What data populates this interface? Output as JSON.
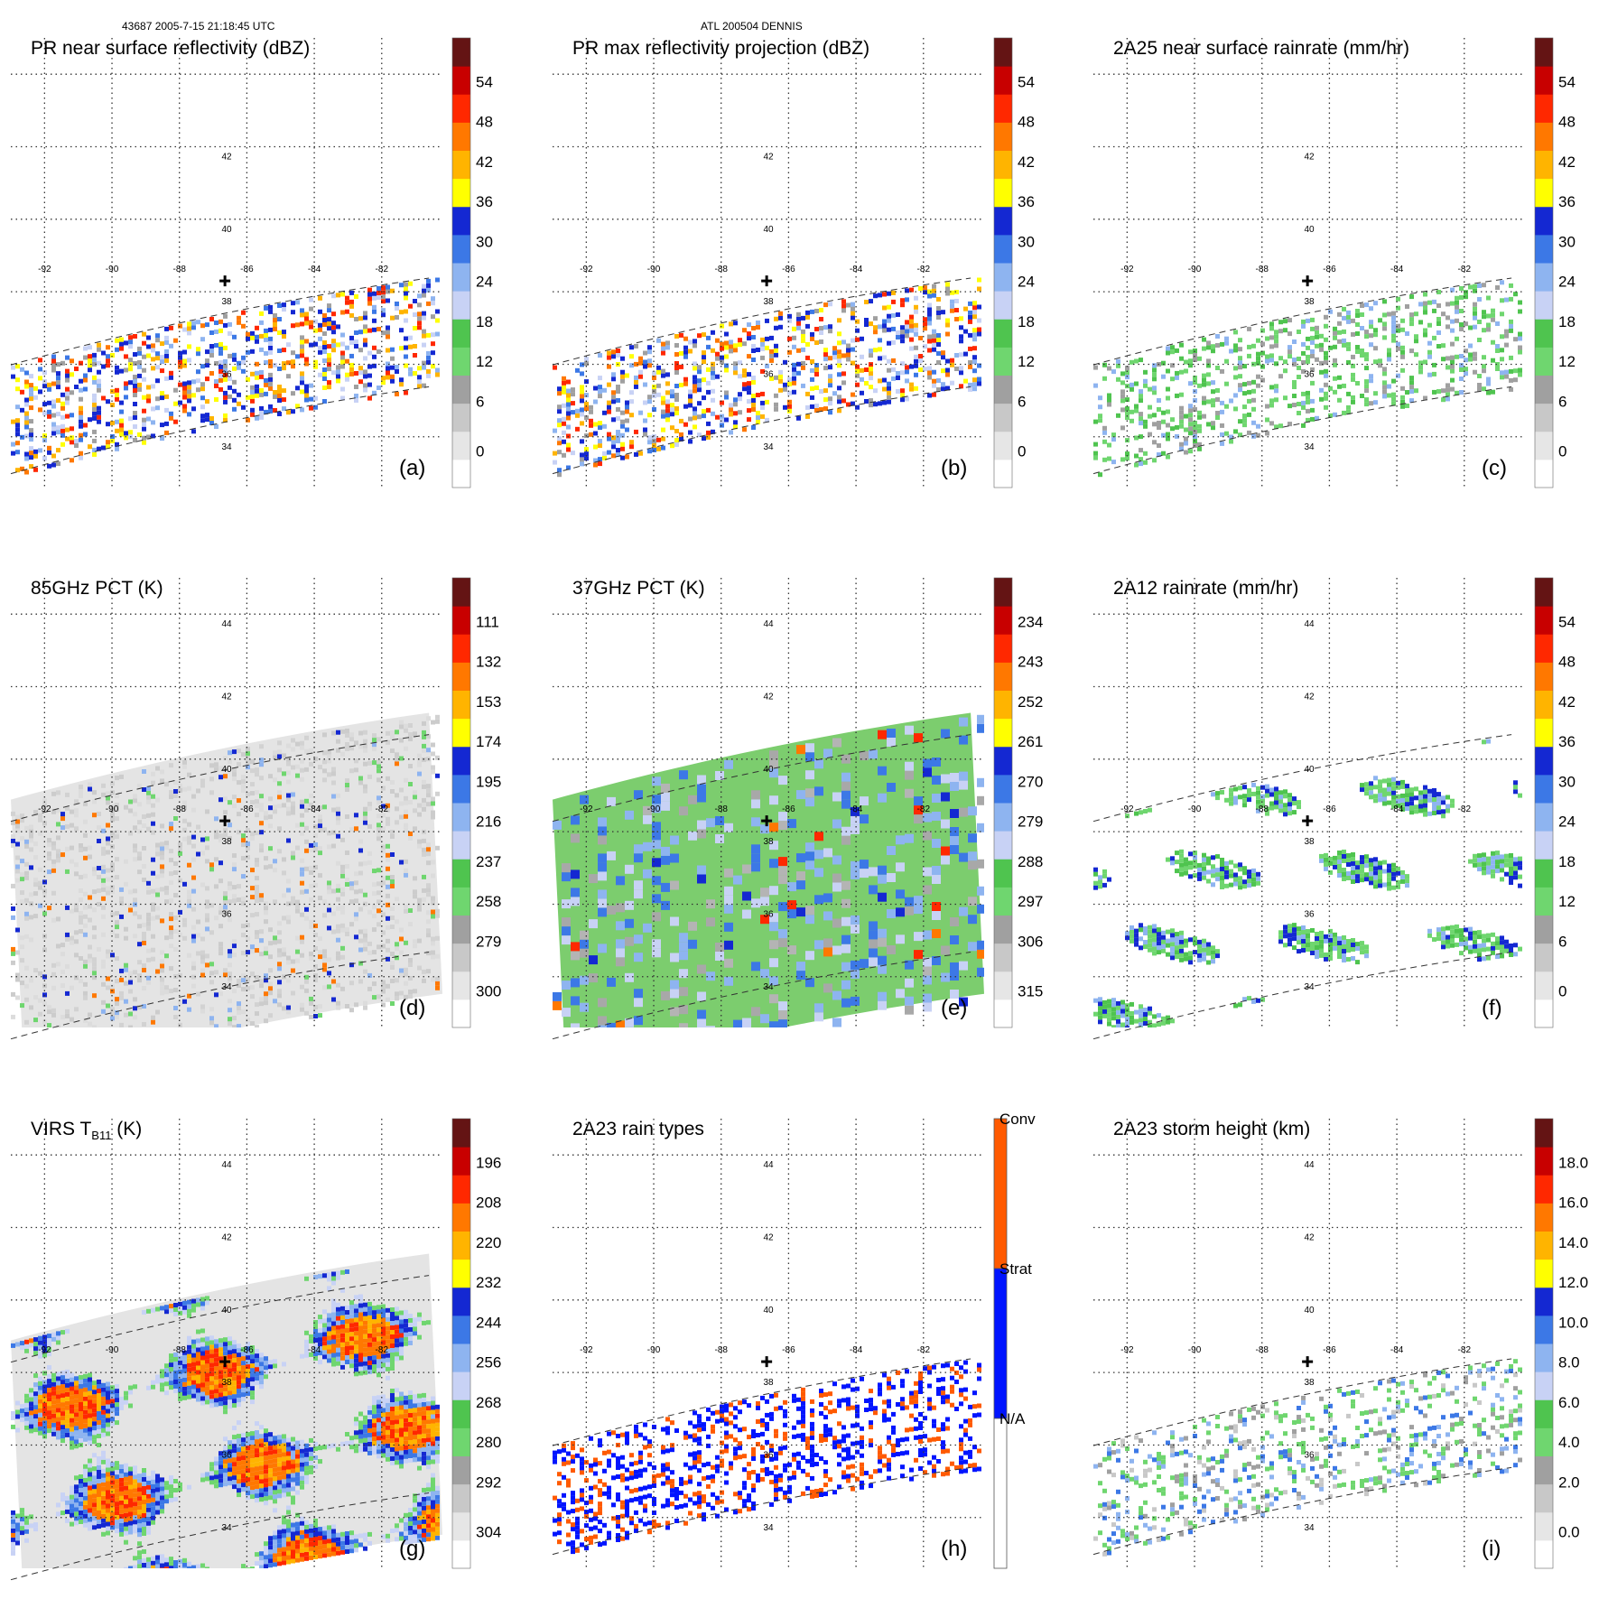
{
  "header": {
    "left": "43687 2005-7-15 21:18:45 UTC",
    "center": "ATL 200504 DENNIS"
  },
  "map": {
    "lon_labels": [
      "-92",
      "-90",
      "-88",
      "-86",
      "-84",
      "-82"
    ],
    "lat_labels_top": [
      "42",
      "40",
      "38",
      "36",
      "34"
    ],
    "lat_labels_full": [
      "44",
      "42",
      "40",
      "38",
      "36",
      "34"
    ]
  },
  "colors": {
    "palette16": [
      "#ffffff",
      "#e6e6e6",
      "#c8c8c8",
      "#a0a0a0",
      "#6fd66f",
      "#4fc44f",
      "#c8d2f5",
      "#8eb4f0",
      "#3c78e6",
      "#1428d2",
      "#ffff00",
      "#ffb400",
      "#ff7800",
      "#ff2800",
      "#c80000",
      "#641414"
    ],
    "raintype": [
      "#ffffff",
      "#0014ff",
      "#ff5a00"
    ],
    "grey_field": "#e4e4e4",
    "green_field": "#7ccd6e"
  },
  "chart_data": [
    {
      "id": "a",
      "type": "heatmap",
      "title": "PR near surface reflectivity (dBZ)",
      "label": "(a)",
      "lat_labels": "top",
      "colorbar": {
        "ticks": [
          "54",
          "48",
          "42",
          "36",
          "30",
          "24",
          "18",
          "12",
          "6",
          "0"
        ],
        "range": [
          0,
          60
        ]
      },
      "field": {
        "style": "speckle",
        "coverage": 0.35,
        "swath_deg": [
          33.2,
          36.2
        ]
      }
    },
    {
      "id": "b",
      "type": "heatmap",
      "title": "PR max reflectivity projection (dBZ)",
      "label": "(b)",
      "lat_labels": "top",
      "colorbar": {
        "ticks": [
          "54",
          "48",
          "42",
          "36",
          "30",
          "24",
          "18",
          "12",
          "6",
          "0"
        ],
        "range": [
          0,
          60
        ]
      },
      "field": {
        "style": "speckle_contour",
        "coverage": 0.35,
        "swath_deg": [
          33.2,
          36.2
        ]
      }
    },
    {
      "id": "c",
      "type": "heatmap",
      "title": "2A25 near surface rainrate (mm/hr)",
      "label": "(c)",
      "lat_labels": "top",
      "colorbar": {
        "ticks": [
          "54",
          "48",
          "42",
          "36",
          "30",
          "24",
          "18",
          "12",
          "6",
          "0"
        ],
        "range": [
          0,
          60
        ]
      },
      "field": {
        "style": "green_contour",
        "coverage": 0.3,
        "swath_deg": [
          33.2,
          36.2
        ]
      }
    },
    {
      "id": "d",
      "type": "heatmap",
      "title": "85GHz PCT (K)",
      "label": "(d)",
      "lat_labels": "full",
      "colorbar": {
        "ticks": [
          "111",
          "132",
          "153",
          "174",
          "195",
          "216",
          "237",
          "258",
          "279",
          "300"
        ],
        "range": [
          90,
          300
        ]
      },
      "field": {
        "style": "grey_with_cells",
        "swath_deg": [
          32.5,
          38.5
        ]
      }
    },
    {
      "id": "e",
      "type": "heatmap",
      "title": "37GHz PCT (K)",
      "label": "(e)",
      "lat_labels": "full",
      "colorbar": {
        "ticks": [
          "234",
          "243",
          "252",
          "261",
          "270",
          "279",
          "288",
          "297",
          "306",
          "315"
        ],
        "range": [
          225,
          315
        ]
      },
      "field": {
        "style": "green_blocky",
        "swath_deg": [
          32.5,
          38.5
        ]
      }
    },
    {
      "id": "f",
      "type": "heatmap",
      "title": "2A12 rainrate (mm/hr)",
      "label": "(f)",
      "lat_labels": "full",
      "colorbar": {
        "ticks": [
          "54",
          "48",
          "42",
          "36",
          "30",
          "24",
          "18",
          "12",
          "6",
          "0"
        ],
        "range": [
          0,
          60
        ]
      },
      "field": {
        "style": "green_bands",
        "swath_deg": [
          32.5,
          38.5
        ]
      }
    },
    {
      "id": "g",
      "type": "heatmap",
      "title": "VIRS T",
      "title_sub": "B11",
      "title_suffix": " (K)",
      "label": "(g)",
      "lat_labels": "full",
      "colorbar": {
        "ticks": [
          "196",
          "208",
          "220",
          "232",
          "244",
          "256",
          "268",
          "280",
          "292",
          "304"
        ],
        "range": [
          184,
          304
        ]
      },
      "field": {
        "style": "ir_clouds",
        "swath_deg": [
          32.5,
          38.5
        ]
      }
    },
    {
      "id": "h",
      "type": "heatmap",
      "title": "2A23 rain types",
      "label": "(h)",
      "lat_labels": "full",
      "colorbar": {
        "categories": [
          "Conv",
          "Strat",
          "N/A"
        ]
      },
      "field": {
        "style": "raintype",
        "coverage": 0.35,
        "swath_deg": [
          33.2,
          36.2
        ]
      }
    },
    {
      "id": "i",
      "type": "heatmap",
      "title": "2A23 storm height (km)",
      "label": "(i)",
      "lat_labels": "full",
      "colorbar": {
        "ticks": [
          "18.0",
          "16.0",
          "14.0",
          "12.0",
          "10.0",
          "8.0",
          "6.0",
          "4.0",
          "2.0",
          "0.0"
        ],
        "range": [
          0,
          20
        ]
      },
      "field": {
        "style": "sparse_height",
        "coverage": 0.25,
        "swath_deg": [
          33.2,
          36.2
        ]
      }
    }
  ]
}
